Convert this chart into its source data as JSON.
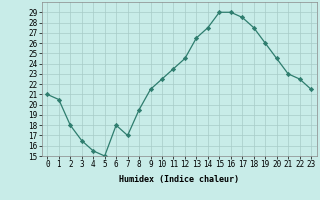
{
  "xlabel": "Humidex (Indice chaleur)",
  "x": [
    0,
    1,
    2,
    3,
    4,
    5,
    6,
    7,
    8,
    9,
    10,
    11,
    12,
    13,
    14,
    15,
    16,
    17,
    18,
    19,
    20,
    21,
    22,
    23
  ],
  "y": [
    21,
    20.5,
    18,
    16.5,
    15.5,
    15,
    18,
    17,
    19.5,
    21.5,
    22.5,
    23.5,
    24.5,
    26.5,
    27.5,
    29,
    29,
    28.5,
    27.5,
    26,
    24.5,
    23,
    22.5,
    21.5
  ],
  "line_color": "#2e7d6e",
  "marker": "D",
  "marker_size": 2.2,
  "bg_color": "#c8ece8",
  "grid_color": "#a8ccc8",
  "ylim": [
    15,
    30
  ],
  "xlim": [
    -0.5,
    23.5
  ],
  "yticks": [
    15,
    16,
    17,
    18,
    19,
    20,
    21,
    22,
    23,
    24,
    25,
    26,
    27,
    28,
    29
  ],
  "xticks": [
    0,
    1,
    2,
    3,
    4,
    5,
    6,
    7,
    8,
    9,
    10,
    11,
    12,
    13,
    14,
    15,
    16,
    17,
    18,
    19,
    20,
    21,
    22,
    23
  ],
  "xtick_labels": [
    "0",
    "1",
    "2",
    "3",
    "4",
    "5",
    "6",
    "7",
    "8",
    "9",
    "10",
    "11",
    "12",
    "13",
    "14",
    "15",
    "16",
    "17",
    "18",
    "19",
    "20",
    "21",
    "22",
    "23"
  ],
  "ytick_labels": [
    "15",
    "16",
    "17",
    "18",
    "19",
    "20",
    "21",
    "22",
    "23",
    "24",
    "25",
    "26",
    "27",
    "28",
    "29"
  ],
  "label_fontsize": 6.0,
  "tick_fontsize": 5.5
}
